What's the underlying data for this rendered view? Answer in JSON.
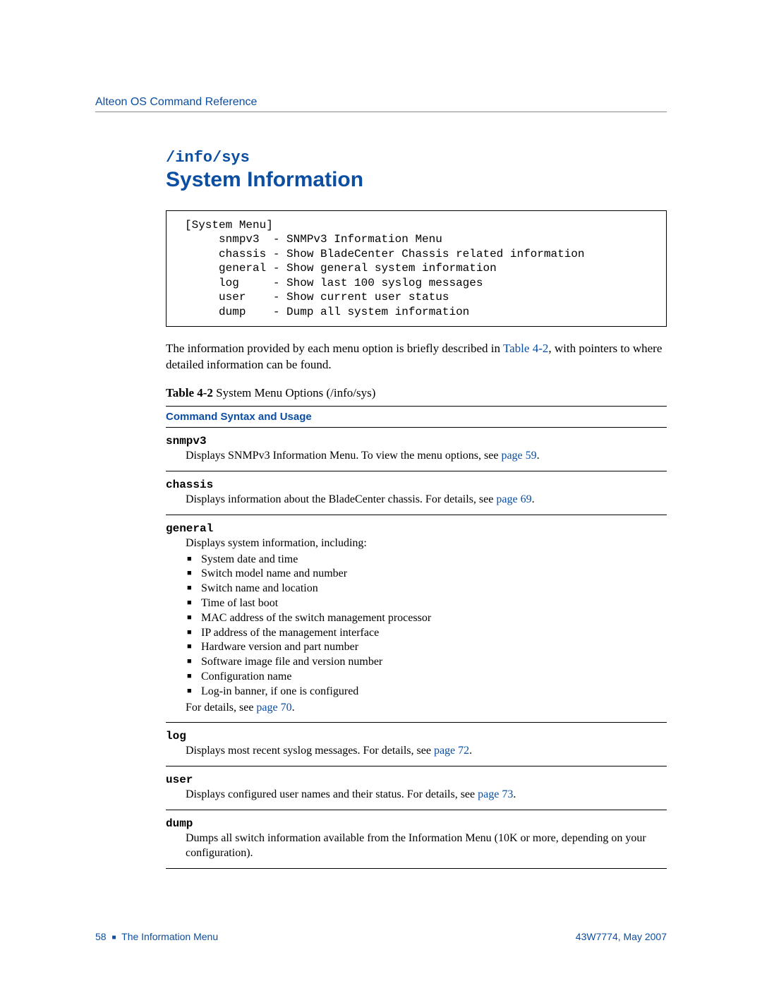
{
  "colors": {
    "accent": "#0b4ea2",
    "text": "#000000",
    "rule": "#000000",
    "header_rule": "#888888",
    "background": "#ffffff"
  },
  "fonts": {
    "body": "Times New Roman",
    "code": "Courier New",
    "ui": "Segoe UI / Myriad Pro"
  },
  "header": {
    "doc_title": "Alteon OS Command Reference"
  },
  "section": {
    "path": "/info/sys",
    "title": "System Information"
  },
  "codebox": {
    "header": "[System Menu]",
    "items": [
      {
        "cmd": "snmpv3",
        "desc": "SNMPv3 Information Menu"
      },
      {
        "cmd": "chassis",
        "desc": "Show BladeCenter Chassis related information"
      },
      {
        "cmd": "general",
        "desc": "Show general system information"
      },
      {
        "cmd": "log",
        "desc": "Show last 100 syslog messages"
      },
      {
        "cmd": "user",
        "desc": "Show current user status"
      },
      {
        "cmd": "dump",
        "desc": "Dump all system information"
      }
    ]
  },
  "intro": {
    "pre": "The information provided by each menu option is briefly described in ",
    "link": "Table 4-2",
    "post": ", with pointers to where detailed information can be found."
  },
  "table": {
    "caption_label": "Table 4-2",
    "caption_text": "  System Menu Options (/info/sys)",
    "header": "Command Syntax and Usage",
    "rows": [
      {
        "cmd": "snmpv3",
        "desc_pre": "Displays SNMPv3 Information Menu. To view the menu options, see ",
        "desc_link": "page 59",
        "desc_post": "."
      },
      {
        "cmd": "chassis",
        "desc_pre": "Displays information about the BladeCenter chassis. For details, see ",
        "desc_link": "page 69",
        "desc_post": "."
      },
      {
        "cmd": "general",
        "intro": "Displays system information, including:",
        "bullets": [
          "System date and time",
          "Switch model name and number",
          "Switch name and location",
          "Time of last boot",
          "MAC address of the switch management processor",
          "IP address of the management interface",
          "Hardware version and part number",
          "Software image file and version number",
          "Configuration name",
          "Log-in banner, if one is configured"
        ],
        "trailer_pre": "For details, see ",
        "trailer_link": "page 70",
        "trailer_post": "."
      },
      {
        "cmd": "log",
        "desc_pre": "Displays most recent syslog messages. For details, see ",
        "desc_link": "page 72",
        "desc_post": "."
      },
      {
        "cmd": "user",
        "desc_pre": "Displays configured user names and their status. For details, see ",
        "desc_link": "page 73",
        "desc_post": "."
      },
      {
        "cmd": "dump",
        "desc_plain": "Dumps all switch information available from the Information Menu (10K or more, depending on your configuration)."
      }
    ]
  },
  "footer": {
    "page_number": "58",
    "chapter": "The Information Menu",
    "right": "43W7774, May 2007"
  }
}
